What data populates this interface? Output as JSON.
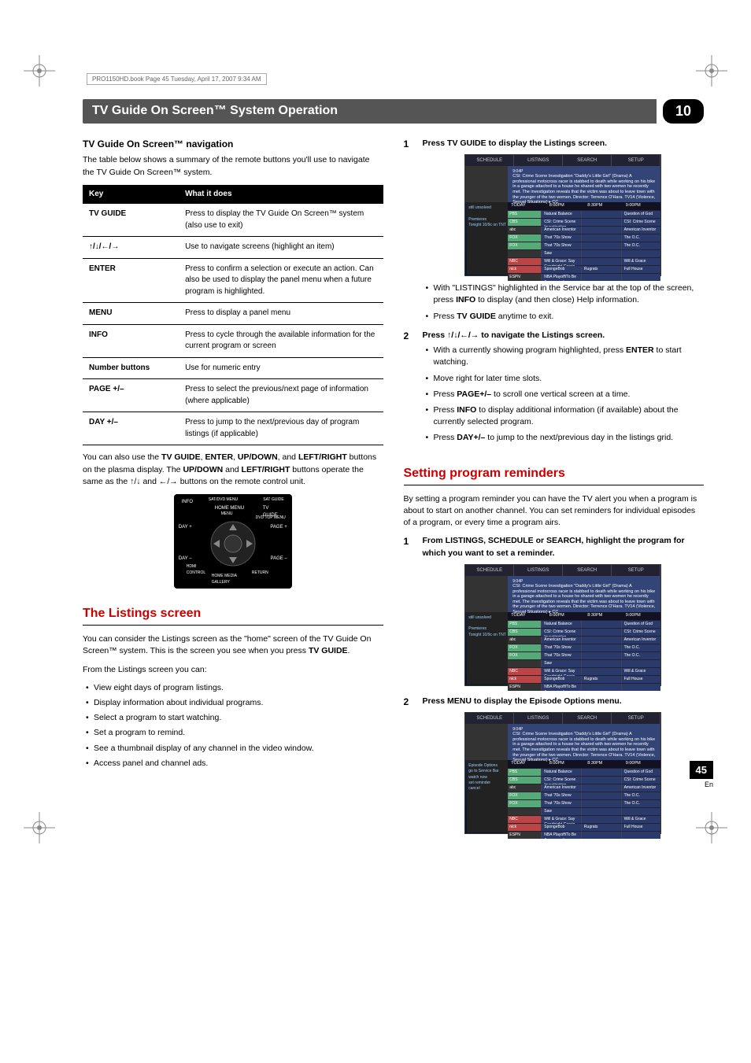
{
  "header_note": "PRO1150HD.book  Page 45  Tuesday, April 17, 2007  9:34 AM",
  "title_bar": "TV Guide On Screen™ System Operation",
  "chapter_num": "10",
  "left": {
    "nav_heading": "TV Guide On Screen™ navigation",
    "nav_intro": "The table below shows a summary of the remote buttons you'll use to navigate the TV Guide On Screen™ system.",
    "table": {
      "head": [
        "Key",
        "What it does"
      ],
      "rows": [
        [
          "TV GUIDE",
          "Press to display the TV Guide On Screen™ system (also use to exit)"
        ],
        [
          "↑/↓/←/→",
          "Use to navigate screens (highlight an item)"
        ],
        [
          "ENTER",
          "Press to confirm a selection or execute an action. Can also be used to display the panel menu when a future program is highlighted."
        ],
        [
          "MENU",
          "Press to display a panel menu"
        ],
        [
          "INFO",
          "Press to cycle through the available information for the current program or screen"
        ],
        [
          "Number buttons",
          "Use for numeric entry"
        ],
        [
          "PAGE +/–",
          "Press to select the previous/next page of information (where applicable)"
        ],
        [
          "DAY +/–",
          "Press to jump to the next/previous day of program listings (if applicable)"
        ]
      ]
    },
    "after_table": "You can also use the <b>TV GUIDE</b>, <b>ENTER</b>, <b>UP/DOWN</b>, and <b>LEFT/RIGHT</b> buttons on the plasma display. The <b>UP/DOWN</b> and <b>LEFT/RIGHT</b> buttons operate the same as the ↑/↓ and ←/→ buttons on the remote control unit.",
    "listings_title": "The Listings screen",
    "listings_intro": "You can consider the Listings screen as the \"home\" screen of the TV Guide On Screen™ system. This is the screen you see when you press <b>TV GUIDE</b>.",
    "listings_lead": "From the Listings screen you can:",
    "listings_bullets": [
      "View eight days of program listings.",
      "Display information about individual programs.",
      "Select a program to start watching.",
      "Set a program to remind.",
      "See a thumbnail display of any channel in the video window.",
      "Access panel and channel ads."
    ]
  },
  "right": {
    "step1_title": "Press TV GUIDE to display the Listings screen.",
    "step1_bullets": [
      "With \"LISTINGS\" highlighted in the Service bar at the top of the screen, press <b>INFO</b> to display (and then close) Help information.",
      "Press <b>TV GUIDE</b> anytime to exit."
    ],
    "step2_title": "Press ↑/↓/←/→ to navigate the Listings screen.",
    "step2_bullets": [
      "With a currently showing program highlighted, press <b>ENTER</b> to start watching.",
      "Move right for later time slots.",
      "Press <b>PAGE+/–</b> to scroll one vertical screen at a time.",
      "Press <b>INFO</b> to display additional information (if available) about the currently selected program.",
      "Press <b>DAY+/–</b> to jump to the next/previous day in the listings grid."
    ],
    "reminders_title": "Setting program reminders",
    "reminders_intro": "By setting a program reminder you can have the TV alert you when a program is about to start on another channel. You can set reminders for individual episodes of a program, or every time a program airs.",
    "r_step1": "From LISTINGS, SCHEDULE or SEARCH, highlight the program for which you want to set a reminder.",
    "r_step2": "Press MENU to display the Episode Options menu."
  },
  "tvshot": {
    "tabs": [
      "SCHEDULE",
      "LISTINGS",
      "SEARCH",
      "SETUP"
    ],
    "info_title": "9:04P",
    "info_body": "CSI: Crime Scene Investigation \"Daddy's Little Girl\" (Drama) A professional motocross racer is stabbed to death while working on his bike in a garage attached to a house he shared with two women he recently met. The investigation reveals that the victim was about to leave town with the younger of the two women. Director: Terrence O'Hara. TV14 (Violence, Sexual Situations) ▸ CC",
    "time_hdr": [
      "TODAY",
      "8:00PM",
      "8:30PM",
      "9:00PM"
    ],
    "rows": [
      {
        "ch": "PBS",
        "cls": "",
        "p": [
          "Natural Balance",
          "",
          "Question of God"
        ]
      },
      {
        "ch": "CBS",
        "cls": "",
        "p": [
          "CSI: Crime Scene Investigation",
          "",
          "CSI: Crime Scene"
        ]
      },
      {
        "ch": "abc",
        "cls": "dark",
        "p": [
          "American Inventor",
          "",
          "American Inventor"
        ]
      },
      {
        "ch": "FOX",
        "cls": "",
        "p": [
          "That '70s Show",
          "",
          "The O.C."
        ]
      },
      {
        "ch": "FOX",
        "cls": "",
        "p": [
          "That '70s Show",
          "",
          "The O.C."
        ]
      },
      {
        "ch": "",
        "cls": "dark",
        "p": [
          "Saw",
          "",
          ""
        ]
      },
      {
        "ch": "NBC",
        "cls": "red",
        "p": [
          "Will & Grace: Say Goodnight Gracie",
          "",
          "Will & Grace"
        ]
      },
      {
        "ch": "nick",
        "cls": "red",
        "p": [
          "SpongeBob",
          "Rugrats",
          "Full House"
        ]
      },
      {
        "ch": "ESPN",
        "cls": "dark",
        "p": [
          "NBA Playoff/To Be Announced",
          "",
          ""
        ]
      }
    ],
    "side": "still unsolved\n\nPremieres\nTonight 10/9c on TNT"
  },
  "tvshot3_side": "Episode Options\n go to Service Bar\n watch now\n set reminder\n cancel",
  "page_num": "45",
  "page_lang": "En",
  "colors": {
    "title_bg": "#555555",
    "num_bg": "#000000",
    "accent": "#cc0000"
  }
}
